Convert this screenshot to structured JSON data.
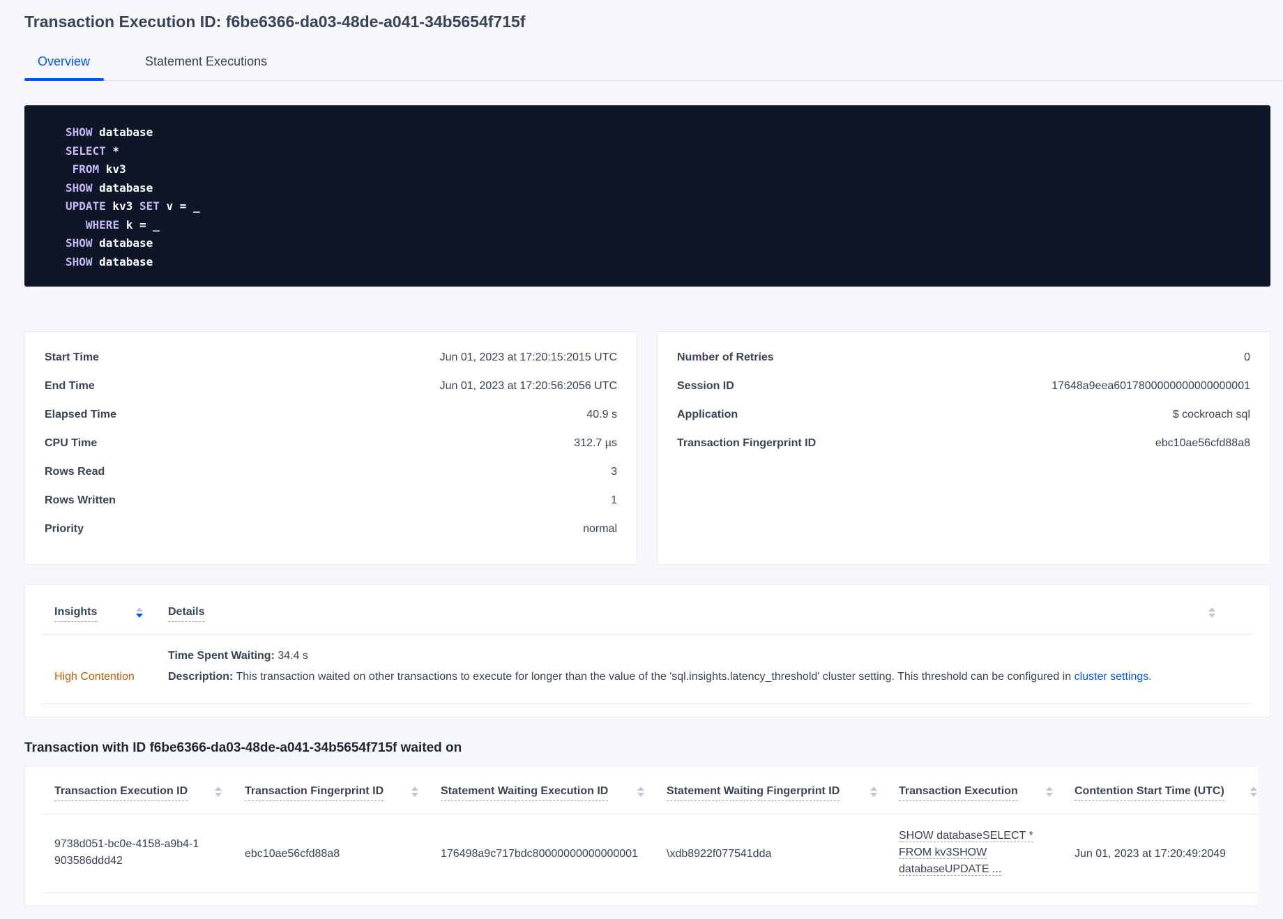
{
  "title": "Transaction Execution ID: f6be6366-da03-48de-a041-34b5654f715f",
  "tabs": [
    {
      "label": "Overview",
      "active": true
    },
    {
      "label": "Statement Executions",
      "active": false
    }
  ],
  "sql_lines": [
    [
      {
        "k": "SHOW"
      },
      {
        "t": " database"
      }
    ],
    [
      {
        "k": "SELECT"
      },
      {
        "t": " *"
      }
    ],
    [
      {
        "t": " "
      },
      {
        "k": "FROM"
      },
      {
        "t": " kv3"
      }
    ],
    [
      {
        "k": "SHOW"
      },
      {
        "t": " database"
      }
    ],
    [
      {
        "k": "UPDATE"
      },
      {
        "t": " kv3 "
      },
      {
        "k": "SET"
      },
      {
        "t": " v = _"
      }
    ],
    [
      {
        "t": "   "
      },
      {
        "k": "WHERE"
      },
      {
        "t": " k = _"
      }
    ],
    [
      {
        "k": "SHOW"
      },
      {
        "t": " database"
      }
    ],
    [
      {
        "k": "SHOW"
      },
      {
        "t": " database"
      }
    ]
  ],
  "summary_left": [
    {
      "label": "Start Time",
      "value": "Jun 01, 2023 at 17:20:15:2015 UTC"
    },
    {
      "label": "End Time",
      "value": "Jun 01, 2023 at 17:20:56:2056 UTC"
    },
    {
      "label": "Elapsed Time",
      "value": "40.9 s"
    },
    {
      "label": "CPU Time",
      "value": "312.7 µs"
    },
    {
      "label": "Rows Read",
      "value": "3"
    },
    {
      "label": "Rows Written",
      "value": "1"
    },
    {
      "label": "Priority",
      "value": "normal"
    }
  ],
  "summary_right": [
    {
      "label": "Number of Retries",
      "value": "0"
    },
    {
      "label": "Session ID",
      "value": "17648a9eea6017800000000000000001"
    },
    {
      "label": "Application",
      "value": "$ cockroach sql"
    },
    {
      "label": "Transaction Fingerprint ID",
      "value": "ebc10ae56cfd88a8",
      "link": true
    }
  ],
  "insights": {
    "headers": [
      "Insights",
      "Details"
    ],
    "row": {
      "insight": "High Contention",
      "time_label": "Time Spent Waiting:",
      "time_value": " 34.4 s",
      "desc_label": "Description:",
      "desc_text": " This transaction waited on other transactions to execute for longer than the value of the 'sql.insights.latency_threshold' cluster setting. This threshold can be configured in ",
      "desc_link": "cluster settings",
      "desc_end": "."
    },
    "insight_color": "#c55a00"
  },
  "waited_on": {
    "heading": "Transaction with ID f6be6366-da03-48de-a041-34b5654f715f waited on",
    "headers": [
      "Transaction Execution ID",
      "Transaction Fingerprint ID",
      "Statement Waiting Execution ID",
      "Statement Waiting Fingerprint ID",
      "Transaction Execution",
      "Contention Start Time (UTC)"
    ],
    "rows": [
      {
        "txn_exec_id": "9738d051-bc0e-4158-a9b4-1903586ddd42",
        "txn_fp_id": "ebc10ae56cfd88a8",
        "stmt_exec_id": "176498a9c717bdc80000000000000001",
        "stmt_fp_id": "\\xdb8922f077541dda",
        "txn_execution": [
          "SHOW databaseSELECT *",
          "FROM kv3SHOW",
          "databaseUPDATE ..."
        ],
        "start_time": "Jun 01, 2023 at 17:20:49:2049"
      }
    ]
  }
}
